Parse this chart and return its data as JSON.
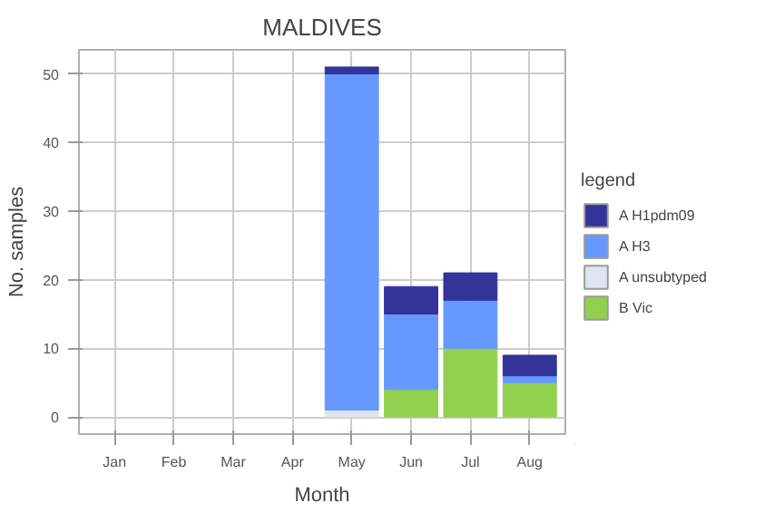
{
  "chart_data": {
    "type": "bar",
    "title": "MALDIVES",
    "xlabel": "Month",
    "ylabel": "No. samples",
    "legend_title": "legend",
    "stacked": true,
    "legend": "right",
    "grid": true,
    "categories": [
      "Jan",
      "Feb",
      "Mar",
      "Apr",
      "May",
      "Jun",
      "Jul",
      "Aug"
    ],
    "ylim": [
      -2.5,
      53.5
    ],
    "yticks": [
      0,
      10,
      20,
      30,
      40,
      50
    ],
    "series": [
      {
        "name": "B Vic",
        "color": "#92d050",
        "values": [
          0,
          0,
          0,
          0,
          0,
          4,
          10,
          5
        ]
      },
      {
        "name": "A unsubtyped",
        "color": "#dde6f0",
        "values": [
          0,
          0,
          0,
          0,
          1,
          0,
          0,
          0
        ]
      },
      {
        "name": "A H3",
        "color": "#6699ff",
        "values": [
          0,
          0,
          0,
          0,
          49,
          11,
          7,
          1
        ]
      },
      {
        "name": "A H1pdm09",
        "color": "#333399",
        "values": [
          0,
          0,
          0,
          0,
          1,
          4,
          4,
          3
        ]
      }
    ]
  }
}
